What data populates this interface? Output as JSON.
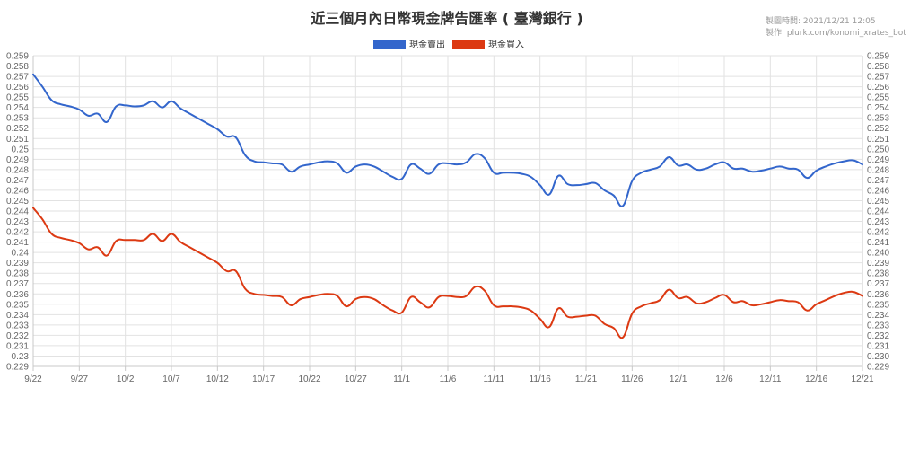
{
  "header": {
    "title": "近三個月內日幣現金牌告匯率 ( 臺灣銀行 )",
    "generated": "製圖時間: 2021/12/21 12:05",
    "credit": "製作: plurk.com/konomi_xrates_bot"
  },
  "chart_data": {
    "type": "line",
    "title": "近三個月內日幣現金牌告匯率 ( 臺灣銀行 )",
    "xlabel": "",
    "ylabel": "",
    "ylim": [
      0.229,
      0.259
    ],
    "yticks": [
      "0.259",
      "0.258",
      "0.257",
      "0.256",
      "0.255",
      "0.254",
      "0.253",
      "0.252",
      "0.251",
      "0.25",
      "0.249",
      "0.248",
      "0.247",
      "0.246",
      "0.245",
      "0.244",
      "0.243",
      "0.242",
      "0.241",
      "0.24",
      "0.239",
      "0.238",
      "0.237",
      "0.236",
      "0.235",
      "0.234",
      "0.233",
      "0.232",
      "0.231",
      "0.23",
      "0.229"
    ],
    "yticks_right": [
      "0.259",
      "0.258",
      "0.257",
      "0.256",
      "0.255",
      "0.254",
      "0.253",
      "0.252",
      "0.251",
      "0.250",
      "0.249",
      "0.248",
      "0.247",
      "0.246",
      "0.245",
      "0.244",
      "0.243",
      "0.242",
      "0.241",
      "0.240",
      "0.239",
      "0.238",
      "0.237",
      "0.236",
      "0.235",
      "0.234",
      "0.233",
      "0.232",
      "0.231",
      "0.230",
      "0.229"
    ],
    "xticks": [
      "9/22",
      "9/27",
      "10/2",
      "10/7",
      "10/12",
      "10/17",
      "10/22",
      "10/27",
      "11/1",
      "11/6",
      "11/11",
      "11/16",
      "11/21",
      "11/26",
      "12/1",
      "12/6",
      "12/11",
      "12/16",
      "12/21"
    ],
    "x_range": [
      "9/22",
      "12/21"
    ],
    "grid": true,
    "legend_position": "top-center",
    "series": [
      {
        "name": "現金賣出",
        "color": "#3366cc",
        "points": [
          [
            "9/22",
            0.2572
          ],
          [
            "9/23",
            0.256
          ],
          [
            "9/24",
            0.2547
          ],
          [
            "9/25",
            0.2543
          ],
          [
            "9/26",
            0.2541
          ],
          [
            "9/27",
            0.2538
          ],
          [
            "9/28",
            0.2532
          ],
          [
            "9/29",
            0.2534
          ],
          [
            "9/30",
            0.2526
          ],
          [
            "10/1",
            0.2541
          ],
          [
            "10/2",
            0.2542
          ],
          [
            "10/3",
            0.2541
          ],
          [
            "10/4",
            0.2542
          ],
          [
            "10/5",
            0.2546
          ],
          [
            "10/6",
            0.254
          ],
          [
            "10/7",
            0.2546
          ],
          [
            "10/8",
            0.2539
          ],
          [
            "10/9",
            0.2534
          ],
          [
            "10/10",
            0.2529
          ],
          [
            "10/11",
            0.2524
          ],
          [
            "10/12",
            0.2519
          ],
          [
            "10/13",
            0.2512
          ],
          [
            "10/14",
            0.2511
          ],
          [
            "10/15",
            0.2494
          ],
          [
            "10/16",
            0.2488
          ],
          [
            "10/17",
            0.2487
          ],
          [
            "10/18",
            0.2486
          ],
          [
            "10/19",
            0.2485
          ],
          [
            "10/20",
            0.2478
          ],
          [
            "10/21",
            0.2483
          ],
          [
            "10/22",
            0.2485
          ],
          [
            "10/23",
            0.2487
          ],
          [
            "10/24",
            0.2488
          ],
          [
            "10/25",
            0.2486
          ],
          [
            "10/26",
            0.2477
          ],
          [
            "10/27",
            0.2483
          ],
          [
            "10/28",
            0.2485
          ],
          [
            "10/29",
            0.2483
          ],
          [
            "10/30",
            0.2478
          ],
          [
            "10/31",
            0.2473
          ],
          [
            "11/1",
            0.2471
          ],
          [
            "11/2",
            0.2485
          ],
          [
            "11/3",
            0.2481
          ],
          [
            "11/4",
            0.2476
          ],
          [
            "11/5",
            0.2485
          ],
          [
            "11/6",
            0.2486
          ],
          [
            "11/7",
            0.2485
          ],
          [
            "11/8",
            0.2487
          ],
          [
            "11/9",
            0.2495
          ],
          [
            "11/10",
            0.2491
          ],
          [
            "11/11",
            0.2477
          ],
          [
            "11/12",
            0.2477
          ],
          [
            "11/13",
            0.2477
          ],
          [
            "11/14",
            0.2476
          ],
          [
            "11/15",
            0.2473
          ],
          [
            "11/16",
            0.2465
          ],
          [
            "11/17",
            0.2456
          ],
          [
            "11/18",
            0.2474
          ],
          [
            "11/19",
            0.2466
          ],
          [
            "11/20",
            0.2465
          ],
          [
            "11/21",
            0.2466
          ],
          [
            "11/22",
            0.2467
          ],
          [
            "11/23",
            0.246
          ],
          [
            "11/24",
            0.2455
          ],
          [
            "11/25",
            0.2445
          ],
          [
            "11/26",
            0.2469
          ],
          [
            "11/27",
            0.2477
          ],
          [
            "11/28",
            0.248
          ],
          [
            "11/29",
            0.2483
          ],
          [
            "11/30",
            0.2492
          ],
          [
            "12/1",
            0.2484
          ],
          [
            "12/2",
            0.2485
          ],
          [
            "12/3",
            0.248
          ],
          [
            "12/4",
            0.2481
          ],
          [
            "12/5",
            0.2485
          ],
          [
            "12/6",
            0.2487
          ],
          [
            "12/7",
            0.2481
          ],
          [
            "12/8",
            0.2481
          ],
          [
            "12/9",
            0.2478
          ],
          [
            "12/10",
            0.2479
          ],
          [
            "12/11",
            0.2481
          ],
          [
            "12/12",
            0.2483
          ],
          [
            "12/13",
            0.2481
          ],
          [
            "12/14",
            0.248
          ],
          [
            "12/15",
            0.2472
          ],
          [
            "12/16",
            0.2479
          ],
          [
            "12/17",
            0.2483
          ],
          [
            "12/18",
            0.2486
          ],
          [
            "12/19",
            0.2488
          ],
          [
            "12/20",
            0.2489
          ],
          [
            "12/21",
            0.2485
          ]
        ]
      },
      {
        "name": "現金買入",
        "color": "#dc3912",
        "points": [
          [
            "9/22",
            0.2443
          ],
          [
            "9/23",
            0.2432
          ],
          [
            "9/24",
            0.2418
          ],
          [
            "9/25",
            0.2414
          ],
          [
            "9/26",
            0.2412
          ],
          [
            "9/27",
            0.2409
          ],
          [
            "9/28",
            0.2403
          ],
          [
            "9/29",
            0.2405
          ],
          [
            "9/30",
            0.2397
          ],
          [
            "10/1",
            0.2411
          ],
          [
            "10/2",
            0.2412
          ],
          [
            "10/3",
            0.2412
          ],
          [
            "10/4",
            0.2412
          ],
          [
            "10/5",
            0.2418
          ],
          [
            "10/6",
            0.2411
          ],
          [
            "10/7",
            0.2418
          ],
          [
            "10/8",
            0.241
          ],
          [
            "10/9",
            0.2405
          ],
          [
            "10/10",
            0.24
          ],
          [
            "10/11",
            0.2395
          ],
          [
            "10/12",
            0.239
          ],
          [
            "10/13",
            0.2382
          ],
          [
            "10/14",
            0.2382
          ],
          [
            "10/15",
            0.2365
          ],
          [
            "10/16",
            0.236
          ],
          [
            "10/17",
            0.2359
          ],
          [
            "10/18",
            0.2358
          ],
          [
            "10/19",
            0.2357
          ],
          [
            "10/20",
            0.2349
          ],
          [
            "10/21",
            0.2355
          ],
          [
            "10/22",
            0.2357
          ],
          [
            "10/23",
            0.2359
          ],
          [
            "10/24",
            0.236
          ],
          [
            "10/25",
            0.2358
          ],
          [
            "10/26",
            0.2348
          ],
          [
            "10/27",
            0.2355
          ],
          [
            "10/28",
            0.2357
          ],
          [
            "10/29",
            0.2355
          ],
          [
            "10/30",
            0.2349
          ],
          [
            "10/31",
            0.2344
          ],
          [
            "11/1",
            0.2342
          ],
          [
            "11/2",
            0.2357
          ],
          [
            "11/3",
            0.2352
          ],
          [
            "11/4",
            0.2347
          ],
          [
            "11/5",
            0.2357
          ],
          [
            "11/6",
            0.2358
          ],
          [
            "11/7",
            0.2357
          ],
          [
            "11/8",
            0.2358
          ],
          [
            "11/9",
            0.2367
          ],
          [
            "11/10",
            0.2363
          ],
          [
            "11/11",
            0.2349
          ],
          [
            "11/12",
            0.2348
          ],
          [
            "11/13",
            0.2348
          ],
          [
            "11/14",
            0.2347
          ],
          [
            "11/15",
            0.2344
          ],
          [
            "11/16",
            0.2336
          ],
          [
            "11/17",
            0.2328
          ],
          [
            "11/18",
            0.2346
          ],
          [
            "11/19",
            0.2338
          ],
          [
            "11/20",
            0.2338
          ],
          [
            "11/21",
            0.2339
          ],
          [
            "11/22",
            0.2339
          ],
          [
            "11/23",
            0.2331
          ],
          [
            "11/24",
            0.2327
          ],
          [
            "11/25",
            0.2318
          ],
          [
            "11/26",
            0.2341
          ],
          [
            "11/27",
            0.2348
          ],
          [
            "11/28",
            0.2351
          ],
          [
            "11/29",
            0.2354
          ],
          [
            "11/30",
            0.2364
          ],
          [
            "12/1",
            0.2356
          ],
          [
            "12/2",
            0.2357
          ],
          [
            "12/3",
            0.2351
          ],
          [
            "12/4",
            0.2352
          ],
          [
            "12/5",
            0.2356
          ],
          [
            "12/6",
            0.2359
          ],
          [
            "12/7",
            0.2352
          ],
          [
            "12/8",
            0.2353
          ],
          [
            "12/9",
            0.2349
          ],
          [
            "12/10",
            0.235
          ],
          [
            "12/11",
            0.2352
          ],
          [
            "12/12",
            0.2354
          ],
          [
            "12/13",
            0.2353
          ],
          [
            "12/14",
            0.2352
          ],
          [
            "12/15",
            0.2344
          ],
          [
            "12/16",
            0.235
          ],
          [
            "12/17",
            0.2354
          ],
          [
            "12/18",
            0.2358
          ],
          [
            "12/19",
            0.2361
          ],
          [
            "12/20",
            0.2362
          ],
          [
            "12/21",
            0.2358
          ]
        ]
      }
    ]
  }
}
